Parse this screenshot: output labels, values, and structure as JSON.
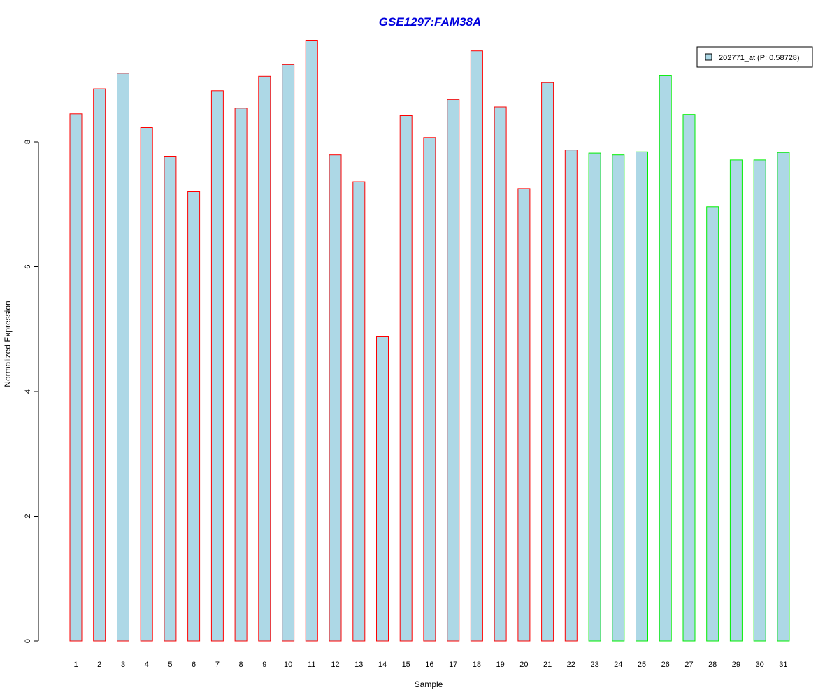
{
  "chart_data": {
    "type": "bar",
    "title": "GSE1297:FAM38A",
    "title_color": "#0000dd",
    "xlabel": "Sample",
    "ylabel": "Normalized Expression",
    "ylim": [
      0,
      9.8
    ],
    "yticks": [
      0,
      2,
      4,
      6,
      8
    ],
    "grid": false,
    "bar_fill": "#add8e6",
    "categories": [
      "1",
      "2",
      "3",
      "4",
      "5",
      "6",
      "7",
      "8",
      "9",
      "10",
      "11",
      "12",
      "13",
      "14",
      "15",
      "16",
      "17",
      "18",
      "19",
      "20",
      "21",
      "22",
      "23",
      "24",
      "25",
      "26",
      "27",
      "28",
      "29",
      "30",
      "31"
    ],
    "values": [
      8.45,
      8.85,
      9.1,
      8.23,
      7.77,
      7.21,
      8.82,
      8.54,
      9.05,
      9.24,
      9.63,
      7.79,
      7.36,
      4.88,
      8.42,
      8.07,
      8.68,
      9.46,
      8.56,
      7.25,
      8.95,
      7.87,
      7.82,
      7.79,
      7.84,
      9.06,
      8.44,
      6.96,
      7.71,
      7.71,
      7.83
    ],
    "groups": [
      {
        "samples": [
          1,
          22
        ],
        "border_color": "#ff0000"
      },
      {
        "samples": [
          23,
          31
        ],
        "border_color": "#00ee00"
      }
    ],
    "legend": {
      "position": "top-right",
      "entries": [
        {
          "label": "202771_at (P: 0.58728)",
          "color": "#add8e6"
        }
      ]
    }
  }
}
